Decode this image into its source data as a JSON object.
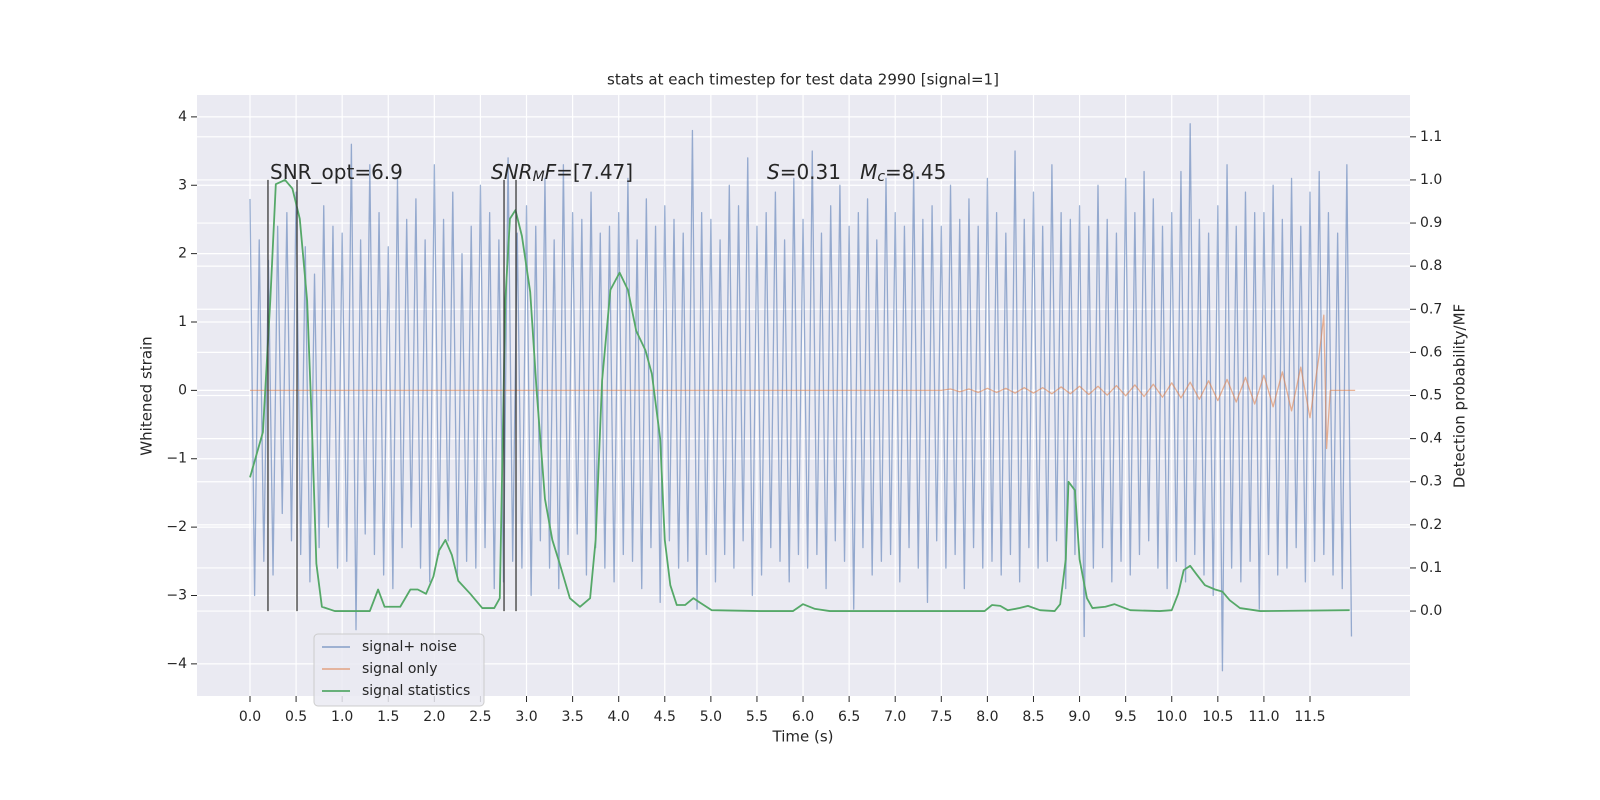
{
  "chart_data": {
    "type": "line",
    "title": "stats at each timestep for test data 2990 [signal=1]",
    "x_label": "Time (s)",
    "y_label": "Whitened strain",
    "y2_label": "Detection probability/MF",
    "xlim": [
      -0.575,
      12.585
    ],
    "ylim": [
      -4.47,
      4.32
    ],
    "y2lim": [
      -0.197,
      1.197
    ],
    "xticks": [
      {
        "value": 0,
        "label": "0.0"
      },
      {
        "value": 0.5,
        "label": "0.5"
      },
      {
        "value": 1,
        "label": "1.0"
      },
      {
        "value": 1.5,
        "label": "1.5"
      },
      {
        "value": 2,
        "label": "2.0"
      },
      {
        "value": 2.5,
        "label": "2.5"
      },
      {
        "value": 3,
        "label": "3.0"
      },
      {
        "value": 3.5,
        "label": "3.5"
      },
      {
        "value": 4,
        "label": "4.0"
      },
      {
        "value": 4.5,
        "label": "4.5"
      },
      {
        "value": 5,
        "label": "5.0"
      },
      {
        "value": 5.5,
        "label": "5.5"
      },
      {
        "value": 6,
        "label": "6.0"
      },
      {
        "value": 6.5,
        "label": "6.5"
      },
      {
        "value": 7,
        "label": "7.0"
      },
      {
        "value": 7.5,
        "label": "7.5"
      },
      {
        "value": 8,
        "label": "8.0"
      },
      {
        "value": 8.5,
        "label": "8.5"
      },
      {
        "value": 9,
        "label": "9.0"
      },
      {
        "value": 9.5,
        "label": "9.5"
      },
      {
        "value": 10,
        "label": "10.0"
      },
      {
        "value": 10.5,
        "label": "10.5"
      },
      {
        "value": 11,
        "label": "11.0"
      },
      {
        "value": 11.5,
        "label": "11.5"
      }
    ],
    "yticks": [
      {
        "value": -4,
        "label": "−4"
      },
      {
        "value": -3,
        "label": "−3"
      },
      {
        "value": -2,
        "label": "−2"
      },
      {
        "value": -1,
        "label": "−1"
      },
      0,
      1,
      2,
      3,
      4
    ],
    "y2ticks": [
      {
        "value": 0,
        "label": "0.0"
      },
      {
        "value": 0.1,
        "label": "0.1"
      },
      {
        "value": 0.2,
        "label": "0.2"
      },
      {
        "value": 0.3,
        "label": "0.3"
      },
      {
        "value": 0.4,
        "label": "0.4"
      },
      {
        "value": 0.5,
        "label": "0.5"
      },
      {
        "value": 0.6,
        "label": "0.6"
      },
      {
        "value": 0.7,
        "label": "0.7"
      },
      {
        "value": 0.8,
        "label": "0.8"
      },
      {
        "value": 0.9,
        "label": "0.9"
      },
      {
        "value": 1,
        "label": "1.0"
      },
      {
        "value": 1.1,
        "label": "1.1"
      }
    ],
    "grid": true,
    "background": "#eaeaf2",
    "legend_loc": "lower left",
    "series": [
      {
        "name": "signal+ noise",
        "color": "#4c72b0",
        "alpha": 0.55,
        "x": [
          0,
          0.05,
          0.1,
          0.15,
          0.2,
          0.25,
          0.3,
          0.35,
          0.4,
          0.45,
          0.5,
          0.55,
          0.6,
          0.65,
          0.7,
          0.75,
          0.8,
          0.85,
          0.9,
          0.95,
          1,
          1.05,
          1.1,
          1.15,
          1.2,
          1.25,
          1.3,
          1.35,
          1.4,
          1.45,
          1.5,
          1.55,
          1.6,
          1.65,
          1.7,
          1.75,
          1.8,
          1.85,
          1.9,
          1.95,
          2,
          2.05,
          2.1,
          2.15,
          2.2,
          2.25,
          2.3,
          2.35,
          2.4,
          2.45,
          2.5,
          2.55,
          2.6,
          2.65,
          2.7,
          2.75,
          2.8,
          2.85,
          2.9,
          2.95,
          3,
          3.05,
          3.1,
          3.15,
          3.2,
          3.25,
          3.3,
          3.35,
          3.4,
          3.45,
          3.5,
          3.55,
          3.6,
          3.65,
          3.7,
          3.75,
          3.8,
          3.85,
          3.9,
          3.95,
          4,
          4.05,
          4.1,
          4.15,
          4.2,
          4.25,
          4.3,
          4.35,
          4.4,
          4.45,
          4.5,
          4.55,
          4.6,
          4.65,
          4.7,
          4.75,
          4.8,
          4.85,
          4.9,
          4.95,
          5,
          5.05,
          5.1,
          5.15,
          5.2,
          5.25,
          5.3,
          5.35,
          5.4,
          5.45,
          5.5,
          5.55,
          5.6,
          5.65,
          5.7,
          5.75,
          5.8,
          5.85,
          5.9,
          5.95,
          6,
          6.05,
          6.1,
          6.15,
          6.2,
          6.25,
          6.3,
          6.35,
          6.4,
          6.45,
          6.5,
          6.55,
          6.6,
          6.65,
          6.7,
          6.75,
          6.8,
          6.85,
          6.9,
          6.95,
          7,
          7.05,
          7.1,
          7.15,
          7.2,
          7.25,
          7.3,
          7.35,
          7.4,
          7.45,
          7.5,
          7.55,
          7.6,
          7.65,
          7.7,
          7.75,
          7.8,
          7.85,
          7.9,
          7.95,
          8,
          8.05,
          8.1,
          8.15,
          8.2,
          8.25,
          8.3,
          8.35,
          8.4,
          8.45,
          8.5,
          8.55,
          8.6,
          8.65,
          8.7,
          8.75,
          8.8,
          8.85,
          8.9,
          8.95,
          9,
          9.05,
          9.1,
          9.15,
          9.2,
          9.25,
          9.3,
          9.35,
          9.4,
          9.45,
          9.5,
          9.55,
          9.6,
          9.65,
          9.7,
          9.75,
          9.8,
          9.85,
          9.9,
          9.95,
          10,
          10.05,
          10.1,
          10.15,
          10.2,
          10.25,
          10.3,
          10.35,
          10.4,
          10.45,
          10.5,
          10.55,
          10.6,
          10.65,
          10.7,
          10.75,
          10.8,
          10.85,
          10.9,
          10.95,
          11,
          11.05,
          11.1,
          11.15,
          11.2,
          11.25,
          11.3,
          11.35,
          11.4,
          11.45,
          11.5,
          11.55,
          11.6,
          11.65,
          11.7,
          11.75,
          11.8,
          11.85,
          11.9,
          11.95
        ],
        "values": [
          2.8,
          -3.0,
          2.2,
          -2.5,
          1.9,
          -2.7,
          2.4,
          -1.8,
          2.6,
          -2.2,
          2.9,
          -2.4,
          2.1,
          -2.8,
          1.7,
          -2.3,
          2.7,
          -2.0,
          2.4,
          -2.6,
          2.3,
          -2.5,
          3.6,
          -3.5,
          2.2,
          -2.1,
          3.3,
          -2.4,
          2.6,
          -2.7,
          2.1,
          -2.9,
          3.1,
          -2.3,
          2.5,
          -2.0,
          2.8,
          -2.6,
          2.2,
          -2.8,
          3.3,
          -2.4,
          2.5,
          -2.2,
          2.9,
          -2.7,
          2.0,
          -2.5,
          2.4,
          -2.6,
          3.0,
          -2.3,
          2.6,
          -2.9,
          2.2,
          -2.8,
          3.4,
          -2.5,
          2.3,
          -2.6,
          2.7,
          -3.0,
          2.4,
          -2.2,
          3.1,
          -2.6,
          2.2,
          -2.9,
          3.3,
          -2.4,
          2.6,
          -2.1,
          2.5,
          -2.7,
          2.9,
          -2.3,
          2.3,
          -2.6,
          2.4,
          -2.8,
          2.6,
          -2.4,
          3.1,
          -2.5,
          2.2,
          -2.9,
          2.8,
          -2.3,
          2.4,
          -3.1,
          2.7,
          -2.2,
          2.5,
          -2.6,
          2.3,
          -2.5,
          3.8,
          -3.2,
          2.6,
          -2.4,
          2.5,
          -2.8,
          2.2,
          -2.4,
          3.0,
          -2.6,
          2.7,
          -2.2,
          3.4,
          -3.0,
          2.4,
          -2.7,
          2.6,
          -2.3,
          2.9,
          -2.5,
          2.2,
          -2.8,
          3.1,
          -2.4,
          2.5,
          -2.6,
          3.5,
          -2.4,
          2.3,
          -2.9,
          2.7,
          -2.2,
          3.0,
          -2.5,
          2.4,
          -3.2,
          2.6,
          -2.3,
          2.8,
          -2.7,
          2.2,
          -2.5,
          3.1,
          -2.4,
          2.6,
          -2.8,
          2.4,
          -2.3,
          3.2,
          -2.6,
          2.5,
          -3.1,
          2.7,
          -2.2,
          2.4,
          -2.6,
          3.0,
          -2.4,
          2.5,
          -2.9,
          2.8,
          -2.3,
          2.4,
          -2.6,
          3.1,
          -2.5,
          2.6,
          -2.7,
          2.3,
          -2.4,
          3.5,
          -2.8,
          2.5,
          -2.3,
          2.9,
          -2.6,
          2.4,
          -2.5,
          3.3,
          -2.2,
          2.6,
          -2.9,
          2.5,
          -2.4,
          2.7,
          -3.6,
          2.4,
          -2.6,
          3.0,
          -2.3,
          2.5,
          -2.8,
          2.3,
          -2.5,
          3.1,
          -2.7,
          2.6,
          -2.4,
          3.2,
          -2.2,
          2.8,
          -2.6,
          2.4,
          -2.9,
          2.6,
          -2.5,
          3.2,
          -2.8,
          3.9,
          -2.4,
          2.5,
          -2.7,
          2.3,
          -3.0,
          2.7,
          -4.1,
          3.3,
          -2.6,
          2.4,
          -2.8,
          2.9,
          -2.5,
          2.6,
          -3.2,
          2.6,
          -2.4,
          3.0,
          -2.7,
          2.5,
          -2.6,
          3.1,
          -2.3,
          2.4,
          -2.8,
          2.9,
          -2.5,
          3.2,
          -2.4,
          2.6,
          -2.7,
          2.3,
          -2.9,
          3.3,
          -3.6
        ]
      },
      {
        "name": "signal only",
        "color": "#dd8452",
        "alpha": 0.6,
        "x": [
          0,
          7.5,
          7.6,
          7.7,
          7.8,
          7.9,
          8.0,
          8.1,
          8.2,
          8.3,
          8.4,
          8.5,
          8.6,
          8.7,
          8.8,
          8.9,
          9.0,
          9.1,
          9.2,
          9.3,
          9.4,
          9.5,
          9.6,
          9.7,
          9.8,
          9.9,
          10.0,
          10.1,
          10.2,
          10.3,
          10.4,
          10.5,
          10.6,
          10.7,
          10.8,
          10.9,
          11.0,
          11.1,
          11.2,
          11.3,
          11.4,
          11.5,
          11.6,
          11.65,
          11.68,
          11.72,
          11.99
        ],
        "values": [
          0,
          0,
          0.02,
          -0.02,
          0.02,
          -0.03,
          0.03,
          -0.03,
          0.03,
          -0.04,
          0.04,
          -0.04,
          0.04,
          -0.05,
          0.05,
          -0.05,
          0.06,
          -0.06,
          0.06,
          -0.07,
          0.07,
          -0.08,
          0.08,
          -0.09,
          0.09,
          -0.1,
          0.11,
          -0.11,
          0.12,
          -0.13,
          0.14,
          -0.15,
          0.16,
          -0.17,
          0.19,
          -0.2,
          0.22,
          -0.24,
          0.27,
          -0.3,
          0.34,
          -0.4,
          0.52,
          1.1,
          -0.85,
          0,
          0
        ]
      },
      {
        "name": "signal statistics",
        "color": "#55a868",
        "alpha": 1,
        "axis": "y2",
        "x": [
          0,
          0.14,
          0.22,
          0.28,
          0.38,
          0.46,
          0.54,
          0.62,
          0.67,
          0.72,
          0.78,
          0.92,
          1.3,
          1.39,
          1.46,
          1.63,
          1.74,
          1.82,
          1.91,
          1.99,
          2.05,
          2.12,
          2.19,
          2.26,
          2.39,
          2.52,
          2.65,
          2.71,
          2.77,
          2.82,
          2.88,
          2.95,
          3.04,
          3.11,
          3.2,
          3.28,
          3.36,
          3.47,
          3.58,
          3.69,
          3.75,
          3.82,
          3.91,
          4.01,
          4.1,
          4.19,
          4.29,
          4.36,
          4.45,
          4.5,
          4.56,
          4.63,
          4.72,
          4.81,
          4.88,
          5.01,
          5.53,
          5.89,
          6.0,
          6.13,
          6.29,
          7.97,
          8.05,
          8.14,
          8.22,
          8.35,
          8.44,
          8.57,
          8.73,
          8.79,
          8.85,
          8.88,
          8.95,
          9.0,
          9.08,
          9.14,
          9.28,
          9.38,
          9.55,
          9.87,
          10.0,
          10.07,
          10.13,
          10.2,
          10.27,
          10.36,
          10.47,
          10.55,
          10.63,
          10.74,
          10.96,
          11.93
        ],
        "values": [
          0.31,
          0.415,
          0.72,
          0.99,
          1.0,
          0.98,
          0.91,
          0.72,
          0.44,
          0.11,
          0.01,
          0,
          0,
          0.05,
          0.01,
          0.01,
          0.05,
          0.05,
          0.04,
          0.08,
          0.14,
          0.165,
          0.13,
          0.07,
          0.04,
          0.007,
          0.007,
          0.03,
          0.72,
          0.91,
          0.93,
          0.87,
          0.74,
          0.51,
          0.26,
          0.165,
          0.11,
          0.03,
          0.01,
          0.03,
          0.165,
          0.535,
          0.745,
          0.785,
          0.745,
          0.65,
          0.605,
          0.55,
          0.4,
          0.165,
          0.06,
          0.014,
          0.014,
          0.03,
          0.02,
          0.002,
          0,
          0,
          0.016,
          0.005,
          0,
          0,
          0.014,
          0.012,
          0.002,
          0.007,
          0.012,
          0.002,
          0,
          0.016,
          0.12,
          0.3,
          0.28,
          0.12,
          0.03,
          0.007,
          0.01,
          0.016,
          0.002,
          0,
          0.002,
          0.04,
          0.095,
          0.105,
          0.085,
          0.06,
          0.05,
          0.045,
          0.025,
          0.007,
          0,
          0.002
        ]
      }
    ],
    "vlines": {
      "x": [
        0.195,
        0.51,
        2.756,
        2.886
      ],
      "ymin": 0,
      "ymax": 1.0,
      "axis": "y2",
      "color": "#3a3a3a"
    },
    "annotations": [
      {
        "parts": [
          {
            "text": "SNR_opt=6.9"
          }
        ]
      },
      {
        "parts": [
          {
            "text": "SNR",
            "italic": true
          },
          {
            "text": "M",
            "italic": true,
            "sub": true
          },
          {
            "text": "F",
            "italic": true
          },
          {
            "text": "=[7.47]"
          }
        ]
      },
      {
        "parts": [
          {
            "text": "S",
            "italic": true
          },
          {
            "text": "=0.31   "
          },
          {
            "text": "M",
            "italic": true
          },
          {
            "text": "c",
            "italic": true,
            "sub": true
          },
          {
            "text": "=8.45"
          }
        ]
      }
    ]
  }
}
